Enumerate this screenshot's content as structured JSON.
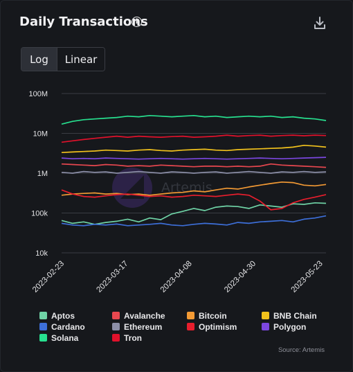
{
  "card": {
    "title": "Daily Transactions",
    "info_glyph": "i",
    "download_icon": "download-icon",
    "toggle": {
      "log_label": "Log",
      "linear_label": "Linear",
      "active": "Log"
    },
    "watermark": "Artemis",
    "source": "Source: Artemis"
  },
  "chart_data": {
    "type": "line",
    "title": "Daily Transactions",
    "xlabel": "",
    "ylabel": "",
    "y_scale": "log",
    "ylim": [
      10000,
      100000000
    ],
    "y_ticks": [
      10000,
      100000,
      1000000,
      10000000,
      100000000
    ],
    "y_tick_labels": [
      "10k",
      "100k",
      "1M",
      "10M",
      "100M"
    ],
    "x_range": [
      "2023-02-23",
      "2023-05-25"
    ],
    "x_ticks": [
      "2023-02-23",
      "2023-03-17",
      "2023-04-08",
      "2023-04-30",
      "2023-05-23"
    ],
    "grid": true,
    "legend_position": "bottom",
    "series": [
      {
        "name": "Aptos",
        "color": "#6fd3a6",
        "values": [
          65000,
          55000,
          60000,
          52000,
          58000,
          62000,
          70000,
          60000,
          75000,
          68000,
          95000,
          110000,
          130000,
          115000,
          140000,
          150000,
          145000,
          130000,
          160000,
          150000,
          140000,
          170000,
          165000,
          180000,
          175000
        ]
      },
      {
        "name": "Avalanche",
        "color": "#e8474f",
        "values": [
          1700000,
          1650000,
          1600000,
          1550000,
          1650000,
          1600000,
          1500000,
          1550000,
          1500000,
          1600000,
          1550000,
          1500000,
          1450000,
          1500000,
          1500000,
          1450000,
          1500000,
          1450000,
          1500000,
          1700000,
          1600000,
          1550000,
          1500000,
          1450000,
          1400000
        ]
      },
      {
        "name": "Bitcoin",
        "color": "#f39a34",
        "values": [
          280000,
          300000,
          310000,
          320000,
          300000,
          310000,
          290000,
          300000,
          280000,
          300000,
          320000,
          330000,
          360000,
          340000,
          380000,
          420000,
          400000,
          450000,
          500000,
          550000,
          600000,
          580000,
          500000,
          480000,
          520000
        ]
      },
      {
        "name": "BNB Chain",
        "color": "#f2c21c",
        "values": [
          3300000,
          3400000,
          3500000,
          3600000,
          3800000,
          3700000,
          3600000,
          3800000,
          3900000,
          3700000,
          3600000,
          3800000,
          3900000,
          4000000,
          3800000,
          3700000,
          3900000,
          4000000,
          4100000,
          4200000,
          4300000,
          4500000,
          5000000,
          4800000,
          4500000
        ]
      },
      {
        "name": "Cardano",
        "color": "#3d6fd9",
        "values": [
          55000,
          50000,
          48000,
          52000,
          50000,
          53000,
          48000,
          50000,
          52000,
          55000,
          50000,
          48000,
          52000,
          55000,
          53000,
          50000,
          58000,
          55000,
          60000,
          62000,
          65000,
          60000,
          70000,
          75000,
          85000
        ]
      },
      {
        "name": "Ethereum",
        "color": "#8c8fa8",
        "values": [
          1050000,
          1000000,
          1100000,
          1050000,
          1080000,
          1000000,
          1050000,
          1100000,
          1050000,
          1000000,
          1080000,
          1050000,
          1000000,
          1050000,
          1080000,
          1000000,
          1050000,
          1100000,
          1050000,
          1000000,
          1080000,
          1050000,
          1100000,
          1050000,
          1080000
        ]
      },
      {
        "name": "Optimism",
        "color": "#e81e2d",
        "values": [
          380000,
          300000,
          260000,
          250000,
          270000,
          290000,
          300000,
          280000,
          260000,
          270000,
          250000,
          260000,
          280000,
          270000,
          260000,
          280000,
          300000,
          280000,
          200000,
          120000,
          130000,
          180000,
          220000,
          250000,
          290000
        ]
      },
      {
        "name": "Polygon",
        "color": "#7b47e0",
        "values": [
          2400000,
          2300000,
          2350000,
          2300000,
          2400000,
          2350000,
          2300000,
          2250000,
          2300000,
          2350000,
          2300000,
          2250000,
          2300000,
          2350000,
          2300000,
          2250000,
          2300000,
          2350000,
          2400000,
          2350000,
          2300000,
          2350000,
          2400000,
          2450000,
          2500000
        ]
      },
      {
        "name": "Solana",
        "color": "#27e08f",
        "values": [
          17000000,
          20000000,
          22000000,
          23000000,
          24000000,
          25000000,
          27000000,
          26000000,
          28000000,
          27000000,
          26000000,
          27000000,
          28000000,
          26000000,
          27000000,
          25000000,
          26000000,
          27000000,
          26000000,
          27000000,
          25000000,
          26000000,
          24000000,
          23000000,
          21000000
        ]
      },
      {
        "name": "Tron",
        "color": "#e0112b",
        "values": [
          6000000,
          6500000,
          7000000,
          7500000,
          8000000,
          8500000,
          8000000,
          8500000,
          8200000,
          8000000,
          8300000,
          8500000,
          8000000,
          8200000,
          8500000,
          9000000,
          8500000,
          8800000,
          9000000,
          8500000,
          8800000,
          9000000,
          8700000,
          9000000,
          8800000
        ]
      }
    ]
  }
}
